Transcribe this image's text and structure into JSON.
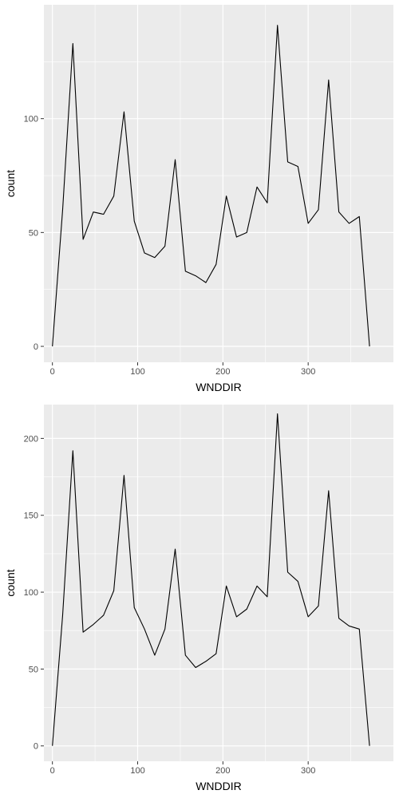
{
  "chart_data": [
    {
      "type": "line",
      "xlabel": "WNDDIR",
      "ylabel": "count",
      "xlim": [
        -10,
        400
      ],
      "ylim": [
        -7,
        150
      ],
      "x_ticks": [
        0,
        100,
        200,
        300
      ],
      "y_ticks": [
        0,
        50,
        100
      ],
      "grid": true,
      "x": [
        0,
        12,
        24,
        36,
        48,
        60,
        72,
        84,
        96,
        108,
        120,
        132,
        144,
        156,
        168,
        180,
        192,
        204,
        216,
        228,
        240,
        252,
        264,
        276,
        288,
        300,
        312,
        324,
        336,
        348,
        360,
        372
      ],
      "values": [
        0,
        60,
        133,
        47,
        59,
        58,
        66,
        103,
        55,
        41,
        39,
        44,
        82,
        33,
        31,
        28,
        36,
        66,
        48,
        50,
        70,
        63,
        141,
        81,
        79,
        54,
        60,
        117,
        59,
        54,
        57,
        0
      ]
    },
    {
      "type": "line",
      "xlabel": "WNDDIR",
      "ylabel": "count",
      "xlim": [
        -10,
        400
      ],
      "ylim": [
        -10,
        222
      ],
      "x_ticks": [
        0,
        100,
        200,
        300
      ],
      "y_ticks": [
        0,
        50,
        100,
        150,
        200
      ],
      "grid": true,
      "x": [
        0,
        12,
        24,
        36,
        48,
        60,
        72,
        84,
        96,
        108,
        120,
        132,
        144,
        156,
        168,
        180,
        192,
        204,
        216,
        228,
        240,
        252,
        264,
        276,
        288,
        300,
        312,
        324,
        336,
        348,
        360,
        372
      ],
      "values": [
        0,
        85,
        192,
        74,
        79,
        85,
        101,
        176,
        90,
        76,
        59,
        76,
        128,
        59,
        51,
        55,
        60,
        104,
        84,
        89,
        104,
        97,
        216,
        113,
        107,
        84,
        91,
        166,
        83,
        78,
        76,
        0
      ]
    }
  ]
}
